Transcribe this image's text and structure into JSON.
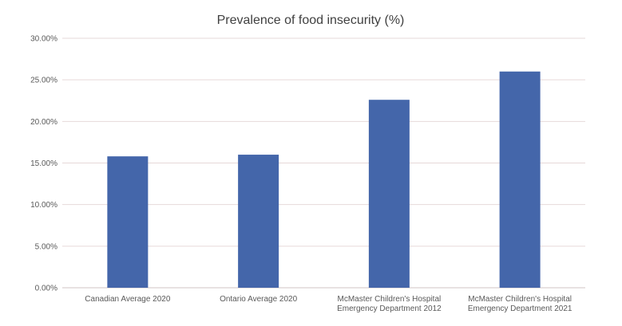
{
  "chart_data": {
    "type": "bar",
    "title": "Prevalence of food insecurity (%)",
    "xlabel": "",
    "ylabel": "",
    "categories": [
      [
        "Canadian Average 2020"
      ],
      [
        "Ontario Average 2020"
      ],
      [
        "McMaster Children's Hospital",
        "Emergency Department 2012"
      ],
      [
        "McMaster Children's Hospital",
        "Emergency Department 2021"
      ]
    ],
    "values": [
      15.8,
      16.0,
      22.6,
      26.0
    ],
    "ylim": [
      0,
      30
    ],
    "yticks": [
      "0.00%",
      "5.00%",
      "10.00%",
      "15.00%",
      "20.00%",
      "25.00%",
      "30.00%"
    ],
    "grid": true,
    "legend": "none",
    "bar_color": "#4466aa"
  }
}
